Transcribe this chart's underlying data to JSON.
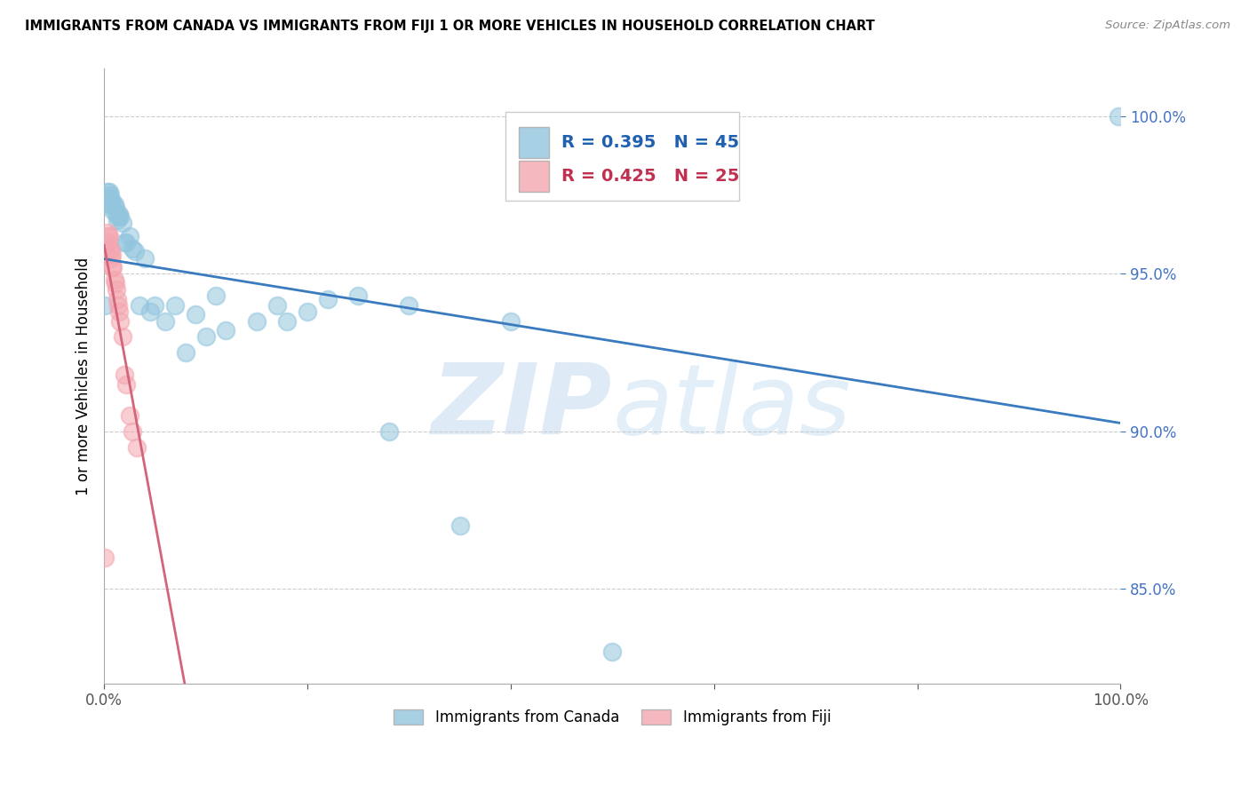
{
  "title": "IMMIGRANTS FROM CANADA VS IMMIGRANTS FROM FIJI 1 OR MORE VEHICLES IN HOUSEHOLD CORRELATION CHART",
  "source": "Source: ZipAtlas.com",
  "ylabel": "1 or more Vehicles in Household",
  "legend_label1": "Immigrants from Canada",
  "legend_label2": "Immigrants from Fiji",
  "r_canada": 0.395,
  "n_canada": 45,
  "r_fiji": 0.425,
  "n_fiji": 25,
  "canada_color": "#92c5de",
  "fiji_color": "#f4a6b0",
  "canada_line_color": "#3a7abf",
  "fiji_line_color": "#d4647a",
  "watermark_zip": "ZIP",
  "watermark_atlas": "atlas",
  "canada_x": [
    0.001,
    0.002,
    0.003,
    0.004,
    0.005,
    0.006,
    0.007,
    0.008,
    0.009,
    0.01,
    0.011,
    0.012,
    0.013,
    0.014,
    0.015,
    0.016,
    0.018,
    0.02,
    0.022,
    0.025,
    0.028,
    0.03,
    0.035,
    0.04,
    0.045,
    0.05,
    0.06,
    0.07,
    0.08,
    0.09,
    0.1,
    0.11,
    0.12,
    0.15,
    0.17,
    0.18,
    0.2,
    0.22,
    0.25,
    0.28,
    0.3,
    0.35,
    0.4,
    0.5,
    0.998
  ],
  "canada_y": [
    0.94,
    0.972,
    0.976,
    0.974,
    0.976,
    0.975,
    0.972,
    0.973,
    0.97,
    0.972,
    0.971,
    0.969,
    0.967,
    0.968,
    0.969,
    0.968,
    0.966,
    0.96,
    0.96,
    0.962,
    0.958,
    0.957,
    0.94,
    0.955,
    0.938,
    0.94,
    0.935,
    0.94,
    0.925,
    0.937,
    0.93,
    0.943,
    0.932,
    0.935,
    0.94,
    0.935,
    0.938,
    0.942,
    0.943,
    0.9,
    0.94,
    0.87,
    0.935,
    0.83,
    1.0
  ],
  "fiji_x": [
    0.001,
    0.002,
    0.003,
    0.003,
    0.004,
    0.005,
    0.006,
    0.007,
    0.007,
    0.008,
    0.008,
    0.009,
    0.01,
    0.011,
    0.012,
    0.013,
    0.014,
    0.015,
    0.016,
    0.018,
    0.02,
    0.022,
    0.025,
    0.028,
    0.032
  ],
  "fiji_y": [
    0.86,
    0.957,
    0.96,
    0.963,
    0.962,
    0.962,
    0.958,
    0.957,
    0.955,
    0.956,
    0.952,
    0.952,
    0.948,
    0.947,
    0.945,
    0.942,
    0.94,
    0.938,
    0.935,
    0.93,
    0.918,
    0.915,
    0.905,
    0.9,
    0.895
  ],
  "xlim": [
    0.0,
    1.0
  ],
  "ylim": [
    0.82,
    1.015
  ],
  "yticks": [
    0.85,
    0.9,
    0.95,
    1.0
  ],
  "ytick_labels": [
    "85.0%",
    "90.0%",
    "95.0%",
    "100.0%"
  ]
}
